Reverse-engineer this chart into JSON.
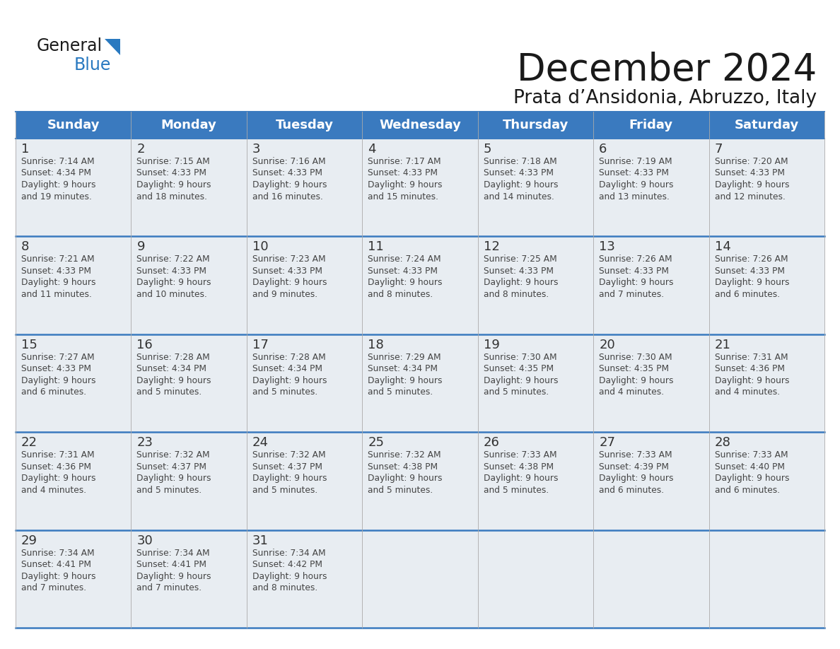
{
  "title": "December 2024",
  "subtitle": "Prata d’Ansidonia, Abruzzo, Italy",
  "days_of_week": [
    "Sunday",
    "Monday",
    "Tuesday",
    "Wednesday",
    "Thursday",
    "Friday",
    "Saturday"
  ],
  "header_bg": "#3a7abf",
  "header_text_color": "#ffffff",
  "cell_bg": "#e8edf2",
  "cell_bg_empty": "#e8edf2",
  "border_color": "#3a7abf",
  "row_sep_color": "#3a7abf",
  "title_color": "#1a1a1a",
  "day_num_color": "#333333",
  "text_color": "#444444",
  "logo_general_color": "#1a1a1a",
  "logo_blue_color": "#2a7ac7",
  "calendar_data": [
    [
      {
        "day": 1,
        "sunrise": "7:14 AM",
        "sunset": "4:34 PM",
        "daylight_hours": 9,
        "daylight_minutes": 19
      },
      {
        "day": 2,
        "sunrise": "7:15 AM",
        "sunset": "4:33 PM",
        "daylight_hours": 9,
        "daylight_minutes": 18
      },
      {
        "day": 3,
        "sunrise": "7:16 AM",
        "sunset": "4:33 PM",
        "daylight_hours": 9,
        "daylight_minutes": 16
      },
      {
        "day": 4,
        "sunrise": "7:17 AM",
        "sunset": "4:33 PM",
        "daylight_hours": 9,
        "daylight_minutes": 15
      },
      {
        "day": 5,
        "sunrise": "7:18 AM",
        "sunset": "4:33 PM",
        "daylight_hours": 9,
        "daylight_minutes": 14
      },
      {
        "day": 6,
        "sunrise": "7:19 AM",
        "sunset": "4:33 PM",
        "daylight_hours": 9,
        "daylight_minutes": 13
      },
      {
        "day": 7,
        "sunrise": "7:20 AM",
        "sunset": "4:33 PM",
        "daylight_hours": 9,
        "daylight_minutes": 12
      }
    ],
    [
      {
        "day": 8,
        "sunrise": "7:21 AM",
        "sunset": "4:33 PM",
        "daylight_hours": 9,
        "daylight_minutes": 11
      },
      {
        "day": 9,
        "sunrise": "7:22 AM",
        "sunset": "4:33 PM",
        "daylight_hours": 9,
        "daylight_minutes": 10
      },
      {
        "day": 10,
        "sunrise": "7:23 AM",
        "sunset": "4:33 PM",
        "daylight_hours": 9,
        "daylight_minutes": 9
      },
      {
        "day": 11,
        "sunrise": "7:24 AM",
        "sunset": "4:33 PM",
        "daylight_hours": 9,
        "daylight_minutes": 8
      },
      {
        "day": 12,
        "sunrise": "7:25 AM",
        "sunset": "4:33 PM",
        "daylight_hours": 9,
        "daylight_minutes": 8
      },
      {
        "day": 13,
        "sunrise": "7:26 AM",
        "sunset": "4:33 PM",
        "daylight_hours": 9,
        "daylight_minutes": 7
      },
      {
        "day": 14,
        "sunrise": "7:26 AM",
        "sunset": "4:33 PM",
        "daylight_hours": 9,
        "daylight_minutes": 6
      }
    ],
    [
      {
        "day": 15,
        "sunrise": "7:27 AM",
        "sunset": "4:33 PM",
        "daylight_hours": 9,
        "daylight_minutes": 6
      },
      {
        "day": 16,
        "sunrise": "7:28 AM",
        "sunset": "4:34 PM",
        "daylight_hours": 9,
        "daylight_minutes": 5
      },
      {
        "day": 17,
        "sunrise": "7:28 AM",
        "sunset": "4:34 PM",
        "daylight_hours": 9,
        "daylight_minutes": 5
      },
      {
        "day": 18,
        "sunrise": "7:29 AM",
        "sunset": "4:34 PM",
        "daylight_hours": 9,
        "daylight_minutes": 5
      },
      {
        "day": 19,
        "sunrise": "7:30 AM",
        "sunset": "4:35 PM",
        "daylight_hours": 9,
        "daylight_minutes": 5
      },
      {
        "day": 20,
        "sunrise": "7:30 AM",
        "sunset": "4:35 PM",
        "daylight_hours": 9,
        "daylight_minutes": 4
      },
      {
        "day": 21,
        "sunrise": "7:31 AM",
        "sunset": "4:36 PM",
        "daylight_hours": 9,
        "daylight_minutes": 4
      }
    ],
    [
      {
        "day": 22,
        "sunrise": "7:31 AM",
        "sunset": "4:36 PM",
        "daylight_hours": 9,
        "daylight_minutes": 4
      },
      {
        "day": 23,
        "sunrise": "7:32 AM",
        "sunset": "4:37 PM",
        "daylight_hours": 9,
        "daylight_minutes": 5
      },
      {
        "day": 24,
        "sunrise": "7:32 AM",
        "sunset": "4:37 PM",
        "daylight_hours": 9,
        "daylight_minutes": 5
      },
      {
        "day": 25,
        "sunrise": "7:32 AM",
        "sunset": "4:38 PM",
        "daylight_hours": 9,
        "daylight_minutes": 5
      },
      {
        "day": 26,
        "sunrise": "7:33 AM",
        "sunset": "4:38 PM",
        "daylight_hours": 9,
        "daylight_minutes": 5
      },
      {
        "day": 27,
        "sunrise": "7:33 AM",
        "sunset": "4:39 PM",
        "daylight_hours": 9,
        "daylight_minutes": 6
      },
      {
        "day": 28,
        "sunrise": "7:33 AM",
        "sunset": "4:40 PM",
        "daylight_hours": 9,
        "daylight_minutes": 6
      }
    ],
    [
      {
        "day": 29,
        "sunrise": "7:34 AM",
        "sunset": "4:41 PM",
        "daylight_hours": 9,
        "daylight_minutes": 7
      },
      {
        "day": 30,
        "sunrise": "7:34 AM",
        "sunset": "4:41 PM",
        "daylight_hours": 9,
        "daylight_minutes": 7
      },
      {
        "day": 31,
        "sunrise": "7:34 AM",
        "sunset": "4:42 PM",
        "daylight_hours": 9,
        "daylight_minutes": 8
      },
      null,
      null,
      null,
      null
    ]
  ]
}
